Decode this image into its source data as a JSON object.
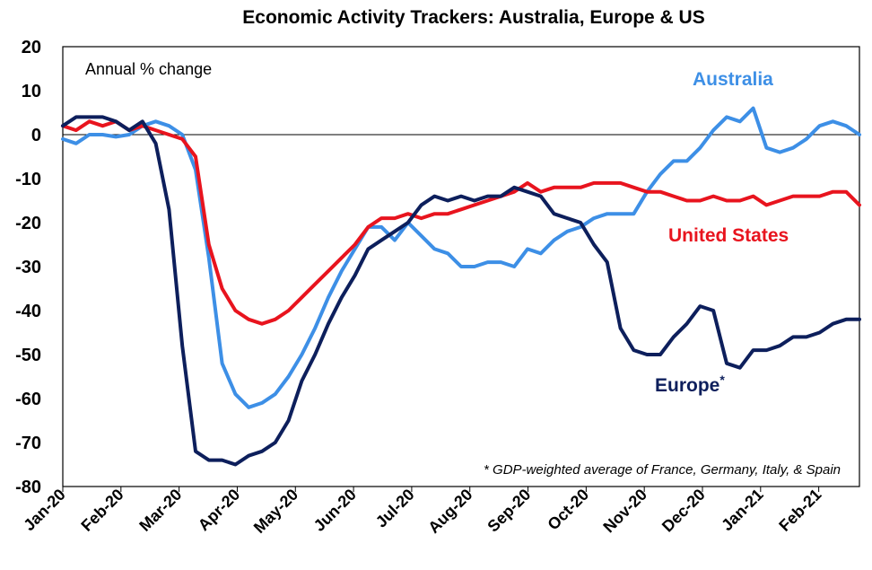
{
  "chart_data": {
    "type": "line",
    "title": "Economic Activity Trackers: Australia, Europe & US",
    "ylabel": "Annual % change",
    "footnote": "* GDP-weighted average of France, Germany, Italy, & Spain",
    "ylim": [
      -80,
      20
    ],
    "yticks": [
      20,
      10,
      0,
      -10,
      -20,
      -30,
      -40,
      -50,
      -60,
      -70,
      -80
    ],
    "xticks": [
      "Jan-20",
      "Feb-20",
      "Mar-20",
      "Apr-20",
      "May-20",
      "Jun-20",
      "Jul-20",
      "Aug-20",
      "Sep-20",
      "Oct-20",
      "Nov-20",
      "Dec-20",
      "Jan-21",
      "Feb-21"
    ],
    "x_unit": "weeks since start of Jan-20",
    "x_range": [
      0,
      60
    ],
    "zero_line": true,
    "grid": false,
    "series": [
      {
        "name": "Australia",
        "label": "Australia",
        "color": "#3d8fe6",
        "x": [
          0,
          1,
          2,
          3,
          4,
          5,
          6,
          7,
          8,
          9,
          10,
          11,
          12,
          13,
          14,
          15,
          16,
          17,
          18,
          19,
          20,
          21,
          22,
          23,
          24,
          25,
          26,
          27,
          28,
          29,
          30,
          31,
          32,
          33,
          34,
          35,
          36,
          37,
          38,
          39,
          40,
          41,
          42,
          43,
          44,
          45,
          46,
          47,
          48,
          49,
          50,
          51,
          52,
          53,
          54,
          55,
          56,
          57,
          58,
          59,
          60
        ],
        "values": [
          -1,
          -2,
          0,
          0,
          -0.5,
          0,
          2,
          3,
          2,
          0,
          -8,
          -28,
          -52,
          -59,
          -62,
          -61,
          -59,
          -55,
          -50,
          -44,
          -37,
          -31,
          -26,
          -21,
          -21,
          -24,
          -20,
          -23,
          -26,
          -27,
          -30,
          -30,
          -29,
          -29,
          -30,
          -26,
          -27,
          -24,
          -22,
          -21,
          -19,
          -18,
          -18,
          -18,
          -13,
          -9,
          -6,
          -6,
          -3,
          1,
          4,
          3,
          6,
          -3,
          -4,
          -3,
          -1,
          2,
          3,
          2,
          0
        ]
      },
      {
        "name": "United States",
        "label": "United States",
        "color": "#e8141e",
        "x": [
          0,
          1,
          2,
          3,
          4,
          5,
          6,
          7,
          8,
          9,
          10,
          11,
          12,
          13,
          14,
          15,
          16,
          17,
          18,
          19,
          20,
          21,
          22,
          23,
          24,
          25,
          26,
          27,
          28,
          29,
          30,
          31,
          32,
          33,
          34,
          35,
          36,
          37,
          38,
          39,
          40,
          41,
          42,
          43,
          44,
          45,
          46,
          47,
          48,
          49,
          50,
          51,
          52,
          53,
          54,
          55,
          56,
          57,
          58,
          59,
          60
        ],
        "values": [
          2,
          1,
          3,
          2,
          3,
          1,
          2,
          1,
          0,
          -1,
          -5,
          -25,
          -35,
          -40,
          -42,
          -43,
          -42,
          -40,
          -37,
          -34,
          -31,
          -28,
          -25,
          -21,
          -19,
          -19,
          -18,
          -19,
          -18,
          -18,
          -17,
          -16,
          -15,
          -14,
          -13,
          -11,
          -13,
          -12,
          -12,
          -12,
          -11,
          -11,
          -11,
          -12,
          -13,
          -13,
          -14,
          -15,
          -15,
          -14,
          -15,
          -15,
          -14,
          -16,
          -15,
          -14,
          -14,
          -14,
          -13,
          -13,
          -16
        ]
      },
      {
        "name": "Europe",
        "label": "Europe",
        "label_suffix": "*",
        "color": "#0d1f5c",
        "x": [
          0,
          1,
          2,
          3,
          4,
          5,
          6,
          7,
          8,
          9,
          10,
          11,
          12,
          13,
          14,
          15,
          16,
          17,
          18,
          19,
          20,
          21,
          22,
          23,
          24,
          25,
          26,
          27,
          28,
          29,
          30,
          31,
          32,
          33,
          34,
          35,
          36,
          37,
          38,
          39,
          40,
          41,
          42,
          43,
          44,
          45,
          46,
          47,
          48,
          49,
          50,
          51,
          52,
          53,
          54,
          55,
          56,
          57,
          58,
          59,
          60
        ],
        "values": [
          2,
          4,
          4,
          4,
          3,
          1,
          3,
          -2,
          -17,
          -48,
          -72,
          -74,
          -74,
          -75,
          -73,
          -72,
          -70,
          -65,
          -56,
          -50,
          -43,
          -37,
          -32,
          -26,
          -24,
          -22,
          -20,
          -16,
          -14,
          -15,
          -14,
          -15,
          -14,
          -14,
          -12,
          -13,
          -14,
          -18,
          -19,
          -20,
          -25,
          -29,
          -44,
          -49,
          -50,
          -50,
          -46,
          -43,
          -39,
          -40,
          -52,
          -53,
          -49,
          -49,
          -48,
          -46,
          -46,
          -45,
          -43,
          -42,
          -42
        ]
      }
    ]
  }
}
